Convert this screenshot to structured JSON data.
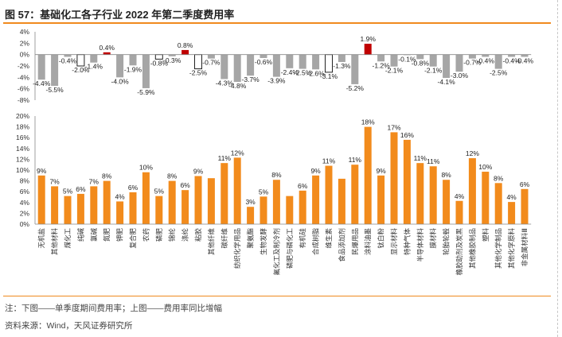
{
  "figure": {
    "title": "图 57：基础化工各子行业 2022 年第二季度费用率",
    "note": "注：下图——单季度期间费用率；上图——费用率同比增幅",
    "source": "资料来源：Wind，天风证券研究所"
  },
  "colors": {
    "accent": "#f08a1e",
    "bar_orange": "#f28b1c",
    "bar_gray": "#a6a6a6",
    "bar_red": "#c00000",
    "bar_outline": "#222222"
  },
  "chart_data": [
    {
      "type": "bar",
      "title": "费用率同比增幅",
      "ylim": [
        -8,
        4
      ],
      "yticks": [
        "-8%",
        "-6%",
        "-4%",
        "-2%",
        "0%",
        "2%",
        "4%"
      ],
      "ytick_values": [
        -8,
        -6,
        -4,
        -2,
        0,
        2,
        4
      ],
      "categories": [
        "无机盐",
        "其他材料",
        "煤化工",
        "纯碱",
        "氯碱",
        "氮肥",
        "钾肥",
        "复合肥",
        "农药",
        "磷肥",
        "锦纶",
        "涤纶",
        "粘胶",
        "其他纤维",
        "碳纤维",
        "纺织化学用品",
        "聚氨酯",
        "生物发酵",
        "氟化工及制冷剂",
        "磷肥与磷化工",
        "有机硅",
        "合成树脂",
        "维生素",
        "食品添加剂",
        "民爆用品",
        "涂料油墨",
        "钛白粉",
        "显示材料",
        "特种气体",
        "半导体材料",
        "膜材料",
        "轮胎轮毂",
        "橡胶助剂及炭黑",
        "其他橡胶制品",
        "塑料",
        "其他化学制品",
        "其他化学原料",
        "非金属材料Ⅲ"
      ],
      "values": [
        -4.4,
        -5.5,
        -0.4,
        -2.0,
        -1.4,
        0.4,
        -4.0,
        -1.9,
        -5.9,
        -0.8,
        -0.3,
        0.8,
        -2.5,
        -0.7,
        -4.3,
        -4.8,
        -3.7,
        -0.6,
        -3.9,
        -2.4,
        -2.5,
        -2.6,
        -3.1,
        -1.3,
        -5.2,
        1.9,
        -1.2,
        -2.1,
        -0.1,
        -0.8,
        -2.1,
        -4.1,
        -3.0,
        -0.7,
        -0.4,
        -2.5,
        -0.4,
        -0.4
      ],
      "labels": [
        "-4.4%",
        "-5.5%",
        "-0.4%",
        "-2.0%",
        "-1.4%",
        "0.4%",
        "-4.0%",
        "-1.9%",
        "-5.9%",
        "-0.8%",
        "-0.3%",
        "0.8%",
        "-2.5%",
        "-0.7%",
        "-4.3%",
        "-4.8%",
        "-3.7%",
        "-0.6%",
        "-3.9%",
        "-2.4%",
        "-2.5%",
        "-2.6%",
        "-3.1%",
        "-1.3%",
        "-5.2%",
        "1.9%",
        "-1.2%",
        "-2.1%",
        "-0.1%",
        "-0.8%",
        "-2.1%",
        "-4.1%",
        "-3.0%",
        "-0.7%",
        "-0.4%",
        "-2.5%",
        "-0.4%",
        "-0.4%"
      ],
      "styles": [
        "g",
        "g",
        "g",
        "w",
        "g",
        "r",
        "g",
        "g",
        "g",
        "w",
        "g",
        "r",
        "w",
        "g",
        "g",
        "g",
        "g",
        "g",
        "g",
        "g",
        "g",
        "g",
        "w",
        "g",
        "g",
        "r",
        "g",
        "g",
        "g",
        "g",
        "g",
        "g",
        "g",
        "g",
        "g",
        "g",
        "g",
        "g"
      ]
    },
    {
      "type": "bar",
      "title": "单季度期间费用率",
      "ylim": [
        0,
        20
      ],
      "yticks": [
        "0%",
        "2%",
        "4%",
        "6%",
        "8%",
        "10%",
        "12%",
        "14%",
        "16%",
        "18%",
        "20%"
      ],
      "ytick_values": [
        0,
        2,
        4,
        6,
        8,
        10,
        12,
        14,
        16,
        18,
        20
      ],
      "categories": [
        "无机盐",
        "其他材料",
        "煤化工",
        "纯碱",
        "氯碱",
        "氮肥",
        "钾肥",
        "复合肥",
        "农药",
        "磷肥",
        "锦纶",
        "涤纶",
        "粘胶",
        "其他纤维",
        "碳纤维",
        "纺织化学用品",
        "聚氨酯",
        "生物发酵",
        "氟化工及制冷剂",
        "磷肥与磷化工",
        "有机硅",
        "合成树脂",
        "维生素",
        "食品添加剂",
        "民爆用品",
        "涂料油墨",
        "钛白粉",
        "显示材料",
        "特种气体",
        "半导体材料",
        "膜材料",
        "轮胎轮毂",
        "橡胶助剂及炭黑",
        "其他橡胶制品",
        "塑料",
        "其他化学制品",
        "其他化学原料",
        "非金属材料Ⅲ"
      ],
      "values": [
        9.0,
        7.0,
        5.2,
        5.6,
        7.0,
        8.0,
        4.2,
        5.9,
        9.6,
        5.2,
        8.0,
        6.3,
        8.9,
        8.5,
        11.3,
        12.3,
        3.2,
        5.1,
        8.2,
        5.2,
        6.2,
        9.0,
        10.8,
        8.4,
        11.0,
        18.0,
        9.0,
        17.0,
        15.6,
        11.3,
        10.7,
        8.2,
        4.3,
        12.2,
        9.7,
        7.6,
        4.1,
        6.5
      ],
      "labels": [
        "9%",
        "7%",
        "5%",
        "6%",
        "7%",
        "8%",
        "4%",
        "6%",
        "10%",
        "5%",
        "8%",
        "6%",
        "9%",
        "",
        "11%",
        "12%",
        "3%",
        "5%",
        "8%",
        "",
        "6%",
        "9%",
        "11%",
        "",
        "11%",
        "18%",
        "9%",
        "17%",
        "16%",
        "11%",
        "11%",
        "8%",
        "4%",
        "12%",
        "10%",
        "8%",
        "4%",
        "6%"
      ]
    }
  ]
}
